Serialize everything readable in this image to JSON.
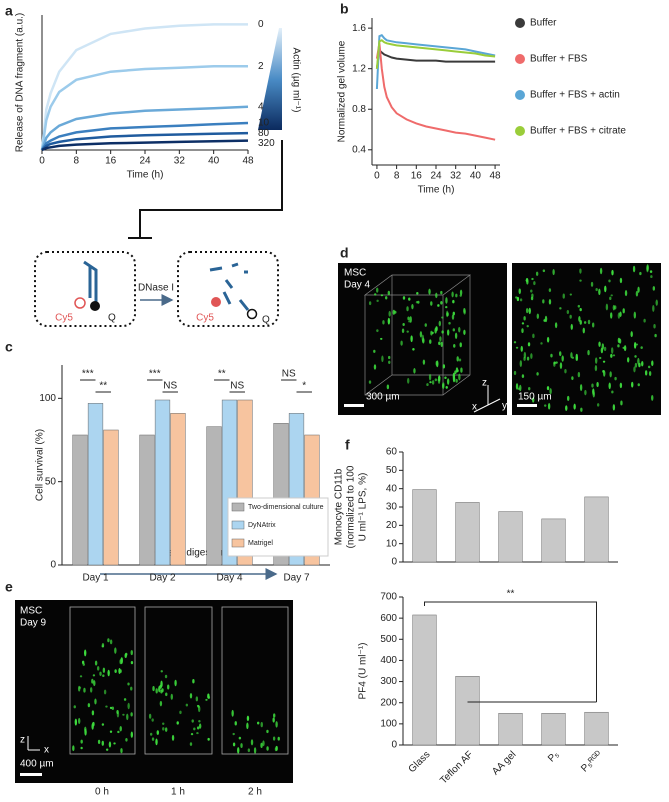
{
  "panel_labels": [
    "a",
    "b",
    "c",
    "d",
    "e",
    "f"
  ],
  "chart_data": [
    {
      "type": "line",
      "x_label": "Time (h)",
      "y_label": "Release of DNA fragment (a.u.)",
      "colorbar_label": "Actin (µg ml⁻¹)",
      "x": [
        0,
        1,
        2,
        4,
        8,
        16,
        24,
        32,
        40,
        48
      ],
      "xlim": [
        0,
        48
      ],
      "xticks": [
        0,
        8,
        16,
        24,
        32,
        40,
        48
      ],
      "ylim": [
        0,
        1
      ],
      "series": [
        {
          "name": "0",
          "color": "#cfe5f5",
          "values": [
            0,
            0.3,
            0.42,
            0.58,
            0.74,
            0.86,
            0.9,
            0.92,
            0.93,
            0.93
          ]
        },
        {
          "name": "2",
          "color": "#9ccbeb",
          "values": [
            0,
            0.22,
            0.32,
            0.43,
            0.52,
            0.58,
            0.6,
            0.61,
            0.62,
            0.62
          ]
        },
        {
          "name": "4",
          "color": "#6aa9d8",
          "values": [
            0,
            0.09,
            0.13,
            0.18,
            0.23,
            0.27,
            0.29,
            0.3,
            0.31,
            0.32
          ]
        },
        {
          "name": "10",
          "color": "#3b7fbf",
          "values": [
            0,
            0.05,
            0.07,
            0.1,
            0.13,
            0.16,
            0.17,
            0.18,
            0.19,
            0.2
          ]
        },
        {
          "name": "80",
          "color": "#1f5b9e",
          "values": [
            0,
            0.03,
            0.045,
            0.06,
            0.08,
            0.1,
            0.11,
            0.115,
            0.12,
            0.125
          ]
        },
        {
          "name": "320",
          "color": "#0d2f66",
          "values": [
            0,
            0.015,
            0.02,
            0.03,
            0.04,
            0.05,
            0.055,
            0.06,
            0.065,
            0.07
          ]
        }
      ]
    },
    {
      "type": "line",
      "x_label": "Time (h)",
      "y_label": "Normalized gel volume",
      "x": [
        0,
        1,
        2,
        3,
        4,
        6,
        8,
        12,
        16,
        20,
        24,
        28,
        32,
        36,
        40,
        44,
        48
      ],
      "xlim": [
        -2,
        50
      ],
      "xticks": [
        0,
        8,
        16,
        24,
        32,
        40,
        48
      ],
      "ylim": [
        0.25,
        1.7
      ],
      "yticks": [
        0.4,
        0.8,
        1.2,
        1.6
      ],
      "series": [
        {
          "name": "Buffer",
          "color": "#3a3a3a",
          "values": [
            1.2,
            1.38,
            1.36,
            1.34,
            1.33,
            1.31,
            1.3,
            1.29,
            1.28,
            1.28,
            1.28,
            1.27,
            1.27,
            1.27,
            1.27,
            1.27,
            1.27
          ]
        },
        {
          "name": "Buffer + FBS",
          "color": "#ef6b6b",
          "values": [
            1.3,
            1.45,
            1.2,
            1.02,
            0.92,
            0.82,
            0.76,
            0.7,
            0.66,
            0.63,
            0.61,
            0.59,
            0.57,
            0.56,
            0.54,
            0.52,
            0.5
          ]
        },
        {
          "name": "Buffer + FBS + actin",
          "color": "#5aa6d6",
          "values": [
            1.0,
            1.52,
            1.53,
            1.5,
            1.48,
            1.47,
            1.46,
            1.45,
            1.44,
            1.43,
            1.42,
            1.41,
            1.4,
            1.39,
            1.37,
            1.35,
            1.33
          ]
        },
        {
          "name": "Buffer + FBS + citrate",
          "color": "#9acd3a",
          "values": [
            1.2,
            1.47,
            1.48,
            1.46,
            1.45,
            1.44,
            1.43,
            1.42,
            1.41,
            1.4,
            1.39,
            1.38,
            1.37,
            1.36,
            1.35,
            1.33,
            1.32
          ]
        }
      ]
    },
    {
      "type": "bar",
      "y_label": "Cell survival (%)",
      "categories": [
        "Day 1",
        "Day 2",
        "Day 4",
        "Day 7"
      ],
      "ylim": [
        0,
        120
      ],
      "yticks": [
        0,
        50,
        100
      ],
      "series": [
        {
          "name": "Two-dimensional culture",
          "color": "#b5b5b5",
          "values": [
            78,
            78,
            83,
            85
          ]
        },
        {
          "name": "DyNAtrix",
          "color": "#acd5f0",
          "values": [
            97,
            99,
            99,
            91
          ]
        },
        {
          "name": "Matrigel",
          "color": "#f7c49f",
          "values": [
            81,
            91,
            99,
            78
          ]
        }
      ],
      "annotations": [
        "***",
        "**",
        "***",
        "NS",
        "**",
        "NS",
        "NS",
        "*"
      ]
    },
    {
      "type": "bar",
      "y_label": [
        "Monocyte CD11b",
        "(normalized to 100",
        "U ml⁻¹ LPS, %)"
      ],
      "categories": [
        null,
        null,
        null,
        null,
        null
      ],
      "values": [
        39.5,
        32.5,
        27.5,
        23.5,
        35.5
      ],
      "color": "#c8c8c8",
      "ylim": [
        0,
        60
      ],
      "yticks": [
        0,
        10,
        20,
        30,
        40,
        50,
        60
      ]
    },
    {
      "type": "bar",
      "y_label": [
        "PF4 (U ml⁻¹)"
      ],
      "categories": [
        "Glass",
        "Teflon AF",
        "AA gel",
        "P₅",
        "P₅ᴿᴳᴰ"
      ],
      "values": [
        615,
        325,
        150,
        150,
        155
      ],
      "color": "#c8c8c8",
      "ylim": [
        0,
        700
      ],
      "yticks": [
        0,
        100,
        200,
        300,
        400,
        500,
        600,
        700
      ],
      "annotations": [
        "**"
      ]
    }
  ],
  "diagram": {
    "enzyme": "DNase I",
    "dye_before": "Cy5",
    "quencher_before": "Q",
    "dye_after": "Cy5",
    "quencher_after": "Q"
  },
  "images": {
    "d": {
      "sample": "MSC",
      "time": "Day 4",
      "scale_left": "300 µm",
      "scale_right": "150 µm",
      "axes": [
        "z",
        "x",
        "y"
      ]
    },
    "e": {
      "sample": "MSC",
      "time": "Day 9",
      "process": "DNase I digestion",
      "frames": [
        "0 h",
        "1 h",
        "2 h"
      ],
      "scale": "400 µm",
      "axes": [
        "z",
        "x"
      ]
    }
  }
}
